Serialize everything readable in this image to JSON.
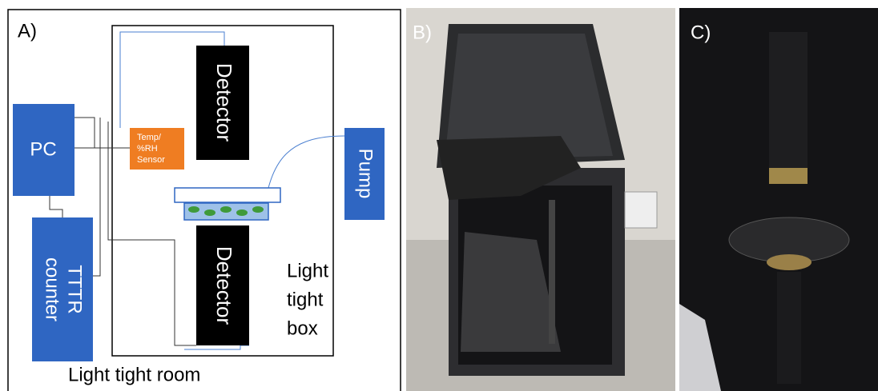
{
  "panels": {
    "a": {
      "label": "A)",
      "pc": "PC",
      "counter": [
        "TTTR",
        "counter"
      ],
      "sensor": [
        "Temp/",
        "%RH",
        "Sensor"
      ],
      "detector_top": "Detector",
      "detector_bottom": "Detector",
      "pump": "Pump",
      "box": [
        "Light",
        "tight",
        "box"
      ],
      "room": "Light tight room"
    },
    "b": {
      "label": "B)"
    },
    "c": {
      "label": "C)"
    }
  }
}
